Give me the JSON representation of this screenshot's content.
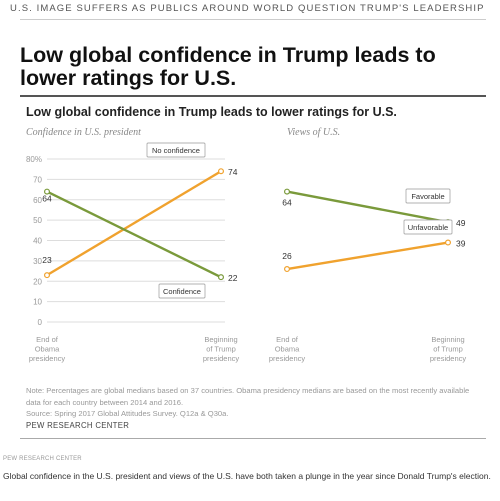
{
  "header": {
    "kicker": "U.S. IMAGE SUFFERS AS PUBLICS AROUND WORLD QUESTION TRUMP'S LEADERSHIP",
    "headline": "Low global confidence in Trump leads to lower ratings for U.S."
  },
  "chart_title": "Low global confidence in Trump leads to lower ratings for U.S.",
  "chart_data": [
    {
      "type": "line",
      "title": "Confidence in U.S. president",
      "x": [
        "End of Obama presidency",
        "Beginning of Trump presidency"
      ],
      "x_tick_lines": [
        [
          "End of",
          "Obama",
          "presidency"
        ],
        [
          "Beginning",
          "of Trump",
          "presidency"
        ]
      ],
      "ylim": [
        0,
        80
      ],
      "y_ticks": [
        "0",
        "10",
        "20",
        "30",
        "40",
        "50",
        "60",
        "70",
        "80%"
      ],
      "grid": true,
      "series": [
        {
          "name": "No confidence",
          "values": [
            23,
            74
          ],
          "value_labels": [
            "23",
            "74"
          ],
          "color": "#f0a22e"
        },
        {
          "name": "Confidence",
          "values": [
            64,
            22
          ],
          "value_labels": [
            "64",
            "22"
          ],
          "color": "#7a9a3b"
        }
      ]
    },
    {
      "type": "line",
      "title": "Views of U.S.",
      "x": [
        "End of Obama presidency",
        "Beginning of Trump presidency"
      ],
      "x_tick_lines": [
        [
          "End of",
          "Obama",
          "presidency"
        ],
        [
          "Beginning",
          "of Trump",
          "presidency"
        ]
      ],
      "ylim": [
        0,
        80
      ],
      "grid": false,
      "series": [
        {
          "name": "Favorable",
          "values": [
            64,
            49
          ],
          "value_labels": [
            "64",
            "49"
          ],
          "color": "#7a9a3b"
        },
        {
          "name": "Unfavorable",
          "values": [
            26,
            39
          ],
          "value_labels": [
            "26",
            "39"
          ],
          "color": "#f0a22e"
        }
      ]
    }
  ],
  "note": "Note: Percentages are global medians based on 37 countries. Obama presidency medians are based on the most recently available data for each country between 2014 and 2016.",
  "source": "Source: Spring 2017 Global Attitudes Survey. Q12a & Q30a.",
  "footer_org": "PEW RESEARCH CENTER",
  "small_org": "PEW RESEARCH CENTER",
  "caption": "Global confidence in the U.S. president and views of the U.S. have both taken a plunge in the year since Donald Trump's election.",
  "colors": {
    "orange": "#f0a22e",
    "green": "#7a9a3b",
    "grid": "#dddddd",
    "axis_text": "#999999"
  }
}
